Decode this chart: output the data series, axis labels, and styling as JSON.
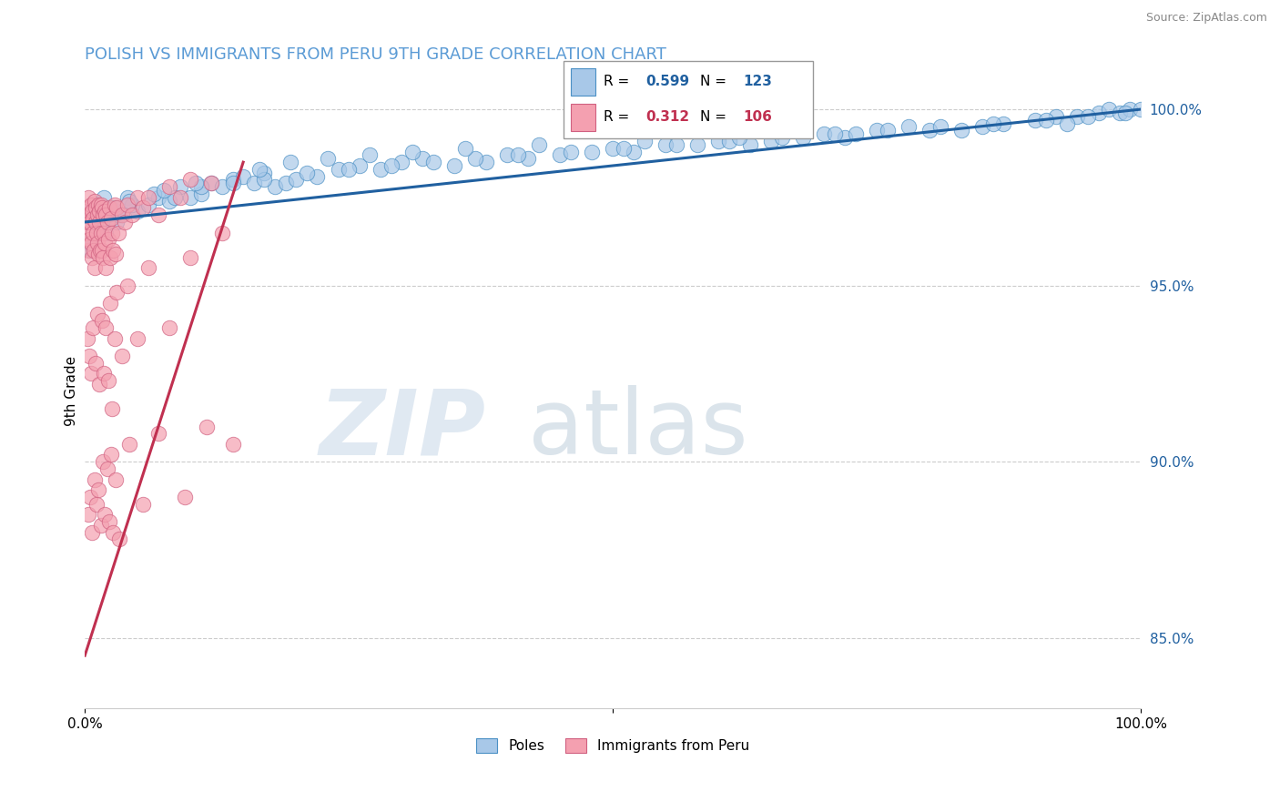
{
  "title": "POLISH VS IMMIGRANTS FROM PERU 9TH GRADE CORRELATION CHART",
  "source_text": "Source: ZipAtlas.com",
  "ylabel": "9th Grade",
  "right_yticks": [
    85.0,
    90.0,
    95.0,
    100.0
  ],
  "blue_R": 0.599,
  "blue_N": 123,
  "pink_R": 0.312,
  "pink_N": 106,
  "blue_color": "#a8c8e8",
  "pink_color": "#f4a0b0",
  "blue_edge_color": "#4a90c4",
  "pink_edge_color": "#d06080",
  "blue_line_color": "#2060a0",
  "pink_line_color": "#c03050",
  "legend_label_blue": "Poles",
  "legend_label_pink": "Immigrants from Peru",
  "blue_scatter_x": [
    0.5,
    0.8,
    1.0,
    1.5,
    1.8,
    2.0,
    2.5,
    3.0,
    3.5,
    4.0,
    5.0,
    6.0,
    7.0,
    8.0,
    9.0,
    10.0,
    11.0,
    12.0,
    13.0,
    14.0,
    15.0,
    16.0,
    17.0,
    18.0,
    19.0,
    20.0,
    22.0,
    24.0,
    26.0,
    28.0,
    30.0,
    32.0,
    35.0,
    38.0,
    40.0,
    42.0,
    45.0,
    48.0,
    50.0,
    52.0,
    55.0,
    58.0,
    60.0,
    63.0,
    65.0,
    68.0,
    70.0,
    72.0,
    75.0,
    78.0,
    80.0,
    85.0,
    87.0,
    90.0,
    92.0,
    94.0,
    96.0,
    97.0,
    98.0,
    99.0,
    100.0,
    1.2,
    2.2,
    3.2,
    4.5,
    6.5,
    8.5,
    11.0,
    14.0,
    17.0,
    21.0,
    25.0,
    29.0,
    33.0,
    37.0,
    41.0,
    46.0,
    51.0,
    56.0,
    61.0,
    66.0,
    71.0,
    76.0,
    81.0,
    86.0,
    91.0,
    95.0,
    98.5,
    0.3,
    0.6,
    1.6,
    2.8,
    4.2,
    7.5,
    10.5,
    16.5,
    19.5,
    23.0,
    27.0,
    31.0,
    36.0,
    43.0,
    53.0,
    62.0,
    73.0,
    83.0,
    93.0
  ],
  "blue_scatter_y": [
    97.2,
    96.8,
    97.0,
    96.8,
    97.5,
    96.5,
    97.2,
    96.8,
    97.0,
    97.5,
    97.1,
    97.3,
    97.5,
    97.4,
    97.8,
    97.5,
    97.6,
    97.9,
    97.8,
    98.0,
    98.1,
    97.9,
    98.2,
    97.8,
    97.9,
    98.0,
    98.1,
    98.3,
    98.4,
    98.3,
    98.5,
    98.6,
    98.4,
    98.5,
    98.7,
    98.6,
    98.7,
    98.8,
    98.9,
    98.8,
    99.0,
    99.0,
    99.1,
    99.0,
    99.1,
    99.2,
    99.3,
    99.2,
    99.4,
    99.5,
    99.4,
    99.5,
    99.6,
    99.7,
    99.8,
    99.8,
    99.9,
    100.0,
    99.9,
    100.0,
    100.0,
    96.5,
    97.0,
    97.0,
    97.3,
    97.6,
    97.5,
    97.8,
    97.9,
    98.0,
    98.2,
    98.3,
    98.4,
    98.5,
    98.6,
    98.7,
    98.8,
    98.9,
    99.0,
    99.1,
    99.2,
    99.3,
    99.4,
    99.5,
    99.6,
    99.7,
    99.8,
    99.9,
    96.2,
    96.0,
    96.8,
    97.2,
    97.4,
    97.7,
    97.9,
    98.3,
    98.5,
    98.6,
    98.7,
    98.8,
    98.9,
    99.0,
    99.1,
    99.2,
    99.3,
    99.4,
    99.6
  ],
  "pink_scatter_x": [
    0.1,
    0.15,
    0.2,
    0.25,
    0.3,
    0.35,
    0.4,
    0.45,
    0.5,
    0.55,
    0.6,
    0.65,
    0.7,
    0.75,
    0.8,
    0.85,
    0.9,
    0.95,
    1.0,
    1.05,
    1.1,
    1.15,
    1.2,
    1.25,
    1.3,
    1.35,
    1.4,
    1.45,
    1.5,
    1.55,
    1.6,
    1.65,
    1.7,
    1.75,
    1.8,
    1.85,
    1.9,
    1.95,
    2.0,
    2.1,
    2.2,
    2.3,
    2.4,
    2.5,
    2.6,
    2.7,
    2.8,
    2.9,
    3.0,
    3.2,
    3.5,
    3.8,
    4.0,
    4.5,
    5.0,
    5.5,
    6.0,
    7.0,
    8.0,
    9.0,
    10.0,
    12.0,
    14.0,
    0.2,
    0.4,
    0.6,
    0.8,
    1.0,
    1.2,
    1.4,
    1.6,
    1.8,
    2.0,
    2.2,
    2.4,
    2.6,
    2.8,
    3.0,
    3.5,
    4.0,
    5.0,
    6.0,
    8.0,
    10.0,
    13.0,
    0.3,
    0.5,
    0.7,
    0.9,
    1.1,
    1.3,
    1.5,
    1.7,
    1.9,
    2.1,
    2.3,
    2.5,
    2.7,
    2.9,
    3.3,
    4.2,
    5.5,
    7.0,
    9.5,
    11.5
  ],
  "pink_scatter_y": [
    97.0,
    96.5,
    97.2,
    96.8,
    96.0,
    97.5,
    96.3,
    97.0,
    96.8,
    96.2,
    97.3,
    95.8,
    97.1,
    96.5,
    96.9,
    96.0,
    97.4,
    95.5,
    97.2,
    96.8,
    96.5,
    97.0,
    96.2,
    97.3,
    95.9,
    96.8,
    97.1,
    96.0,
    97.3,
    96.5,
    96.0,
    97.2,
    95.8,
    97.0,
    96.5,
    96.2,
    97.1,
    95.5,
    97.0,
    96.8,
    96.3,
    97.2,
    95.8,
    96.9,
    96.5,
    96.0,
    97.3,
    95.9,
    97.2,
    96.5,
    97.0,
    96.8,
    97.3,
    97.0,
    97.5,
    97.2,
    97.5,
    97.0,
    97.8,
    97.5,
    98.0,
    97.9,
    90.5,
    93.5,
    93.0,
    92.5,
    93.8,
    92.8,
    94.2,
    92.2,
    94.0,
    92.5,
    93.8,
    92.3,
    94.5,
    91.5,
    93.5,
    94.8,
    93.0,
    95.0,
    93.5,
    95.5,
    93.8,
    95.8,
    96.5,
    88.5,
    89.0,
    88.0,
    89.5,
    88.8,
    89.2,
    88.2,
    90.0,
    88.5,
    89.8,
    88.3,
    90.2,
    88.0,
    89.5,
    87.8,
    90.5,
    88.8,
    90.8,
    89.0,
    91.0
  ],
  "blue_trend_x0": 0.0,
  "blue_trend_x1": 100.0,
  "blue_trend_y0": 96.8,
  "blue_trend_y1": 100.0,
  "pink_trend_x0": 0.0,
  "pink_trend_x1": 15.0,
  "pink_trend_y0": 84.5,
  "pink_trend_y1": 98.5,
  "xmin": 0.0,
  "xmax": 100.0,
  "ymin": 83.0,
  "ymax": 101.0,
  "watermark_zip": "ZIP",
  "watermark_atlas": "atlas",
  "title_color": "#5b9bd5",
  "title_fontsize": 13,
  "source_color": "#888888"
}
